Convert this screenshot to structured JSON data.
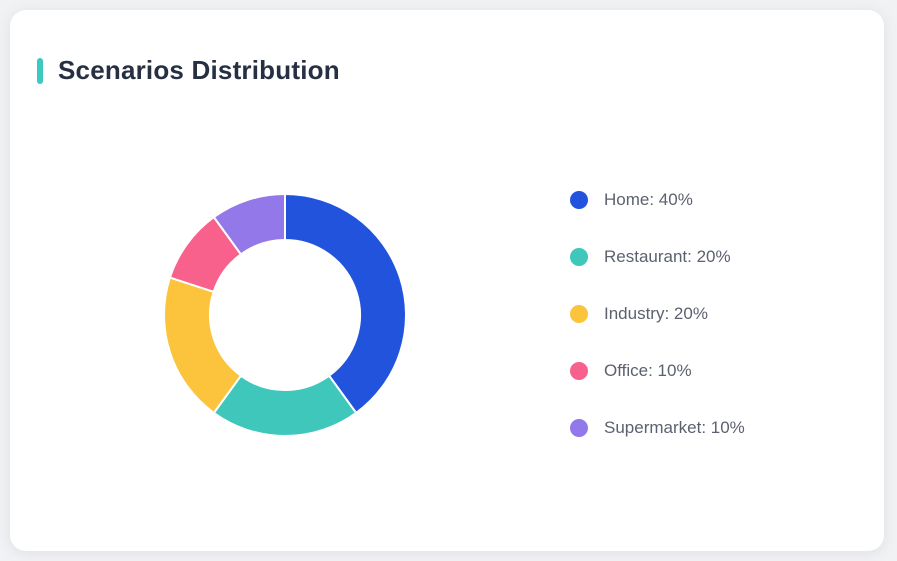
{
  "page": {
    "background_color": "#F1F2F4",
    "card_background_color": "#FFFFFF"
  },
  "card": {
    "title": "Scenarios Distribution",
    "accent_color": "#3EC8C2",
    "title_color": "#273043"
  },
  "chart_data": {
    "type": "pie",
    "title": "Scenarios Distribution",
    "donut": true,
    "inner_radius_ratio": 0.62,
    "start_angle_deg": -90,
    "direction": "clockwise",
    "legend_position": "right",
    "grid": false,
    "categories": [
      "Home",
      "Restaurant",
      "Industry",
      "Office",
      "Supermarket"
    ],
    "values": [
      40,
      20,
      20,
      10,
      10
    ],
    "unit": "%",
    "colors": [
      "#2153DD",
      "#3FC7BC",
      "#FCC33D",
      "#F7618C",
      "#9278E9"
    ],
    "legend_labels": [
      "Home: 40%",
      "Restaurant: 20%",
      "Industry: 20%",
      "Office: 10%",
      "Supermarket: 10%"
    ],
    "slice_border_color": "#FFFFFF",
    "slice_border_width": 2
  }
}
